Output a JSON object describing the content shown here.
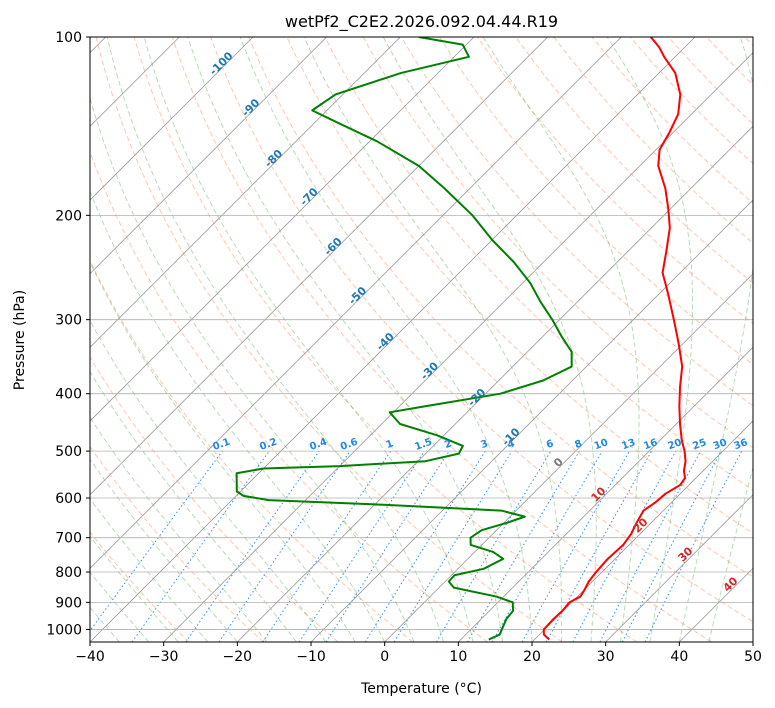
{
  "chart_data": {
    "type": "line",
    "title": "wetPf2_C2E2.2026.092.04.44.R19",
    "xlabel": "Temperature (°C)",
    "ylabel": "Pressure (hPa)",
    "xlim": [
      -40,
      50
    ],
    "ylim": [
      1050,
      100
    ],
    "y_scale": "log",
    "skew": "skew-T log-P diagram",
    "grid": true,
    "x_ticks": [
      -40,
      -30,
      -20,
      -10,
      0,
      10,
      20,
      30,
      40,
      50
    ],
    "y_ticks": [
      100,
      200,
      300,
      400,
      500,
      600,
      700,
      800,
      900,
      1000
    ],
    "isotherm_labels": [
      {
        "value": "-100",
        "p": 112
      },
      {
        "value": "-90",
        "p": 133
      },
      {
        "value": "-80",
        "p": 162
      },
      {
        "value": "-70",
        "p": 188
      },
      {
        "value": "-60",
        "p": 228
      },
      {
        "value": "-50",
        "p": 276
      },
      {
        "value": "-40",
        "p": 330
      },
      {
        "value": "-30",
        "p": 370
      },
      {
        "value": "-20",
        "p": 410
      },
      {
        "value": "-10",
        "p": 478
      }
    ],
    "mixing_ratio_labels": [
      "0.1",
      "0.2",
      "0.4",
      "0.6",
      "1",
      "1.5",
      "2",
      "3",
      "4",
      "6",
      "8",
      "10",
      "13",
      "16",
      "20",
      "25",
      "30",
      "36"
    ],
    "moist_adiabat_labels": [
      "0",
      "10",
      "20",
      "30",
      "40"
    ],
    "series": [
      {
        "role": "temperature",
        "color": "#ff0000",
        "points": [
          {
            "p": 1040,
            "t": 22.0
          },
          {
            "p": 1020,
            "t": 20.6
          },
          {
            "p": 1000,
            "t": 19.9
          },
          {
            "p": 960,
            "t": 19.8
          },
          {
            "p": 930,
            "t": 19.9
          },
          {
            "p": 900,
            "t": 19.7
          },
          {
            "p": 880,
            "t": 20.4
          },
          {
            "p": 860,
            "t": 20.1
          },
          {
            "p": 830,
            "t": 19.5
          },
          {
            "p": 800,
            "t": 19.2
          },
          {
            "p": 760,
            "t": 19.0
          },
          {
            "p": 720,
            "t": 19.2
          },
          {
            "p": 690,
            "t": 18.8
          },
          {
            "p": 660,
            "t": 18.0
          },
          {
            "p": 630,
            "t": 17.3
          },
          {
            "p": 610,
            "t": 17.8
          },
          {
            "p": 590,
            "t": 18.0
          },
          {
            "p": 570,
            "t": 18.8
          },
          {
            "p": 555,
            "t": 18.5
          },
          {
            "p": 540,
            "t": 17.4
          },
          {
            "p": 520,
            "t": 16.3
          },
          {
            "p": 500,
            "t": 14.8
          },
          {
            "p": 480,
            "t": 13.0
          },
          {
            "p": 450,
            "t": 10.5
          },
          {
            "p": 420,
            "t": 8.0
          },
          {
            "p": 390,
            "t": 5.5
          },
          {
            "p": 360,
            "t": 3.0
          },
          {
            "p": 330,
            "t": -0.5
          },
          {
            "p": 300,
            "t": -4.5
          },
          {
            "p": 270,
            "t": -9.0
          },
          {
            "p": 250,
            "t": -12.4
          },
          {
            "p": 230,
            "t": -14.8
          },
          {
            "p": 210,
            "t": -17.5
          },
          {
            "p": 195,
            "t": -20.3
          },
          {
            "p": 180,
            "t": -23.5
          },
          {
            "p": 165,
            "t": -27.5
          },
          {
            "p": 155,
            "t": -29.5
          },
          {
            "p": 145,
            "t": -30.5
          },
          {
            "p": 135,
            "t": -31.8
          },
          {
            "p": 125,
            "t": -34.2
          },
          {
            "p": 115,
            "t": -37.8
          },
          {
            "p": 108,
            "t": -41.5
          },
          {
            "p": 104,
            "t": -43.5
          },
          {
            "p": 100,
            "t": -46.0
          }
        ]
      },
      {
        "role": "dewpoint",
        "color": "#008000",
        "points": [
          {
            "p": 1040,
            "t": 13.8
          },
          {
            "p": 1020,
            "t": 14.6
          },
          {
            "p": 1000,
            "t": 14.2
          },
          {
            "p": 960,
            "t": 13.4
          },
          {
            "p": 930,
            "t": 13.2
          },
          {
            "p": 900,
            "t": 12.0
          },
          {
            "p": 880,
            "t": 9.0
          },
          {
            "p": 850,
            "t": 2.0
          },
          {
            "p": 830,
            "t": 0.5
          },
          {
            "p": 810,
            "t": 0.4
          },
          {
            "p": 790,
            "t": 3.5
          },
          {
            "p": 760,
            "t": 4.8
          },
          {
            "p": 740,
            "t": 2.5
          },
          {
            "p": 720,
            "t": -1.5
          },
          {
            "p": 700,
            "t": -2.5
          },
          {
            "p": 680,
            "t": -2.0
          },
          {
            "p": 660,
            "t": 0.5
          },
          {
            "p": 645,
            "t": 2.0
          },
          {
            "p": 630,
            "t": -2.0
          },
          {
            "p": 615,
            "t": -20.0
          },
          {
            "p": 605,
            "t": -35.0
          },
          {
            "p": 595,
            "t": -39.0
          },
          {
            "p": 585,
            "t": -40.5
          },
          {
            "p": 545,
            "t": -43.0
          },
          {
            "p": 535,
            "t": -40.0
          },
          {
            "p": 530,
            "t": -30.0
          },
          {
            "p": 520,
            "t": -19.0
          },
          {
            "p": 505,
            "t": -15.5
          },
          {
            "p": 490,
            "t": -16.0
          },
          {
            "p": 470,
            "t": -21.0
          },
          {
            "p": 450,
            "t": -27.5
          },
          {
            "p": 430,
            "t": -30.5
          },
          {
            "p": 420,
            "t": -26.5
          },
          {
            "p": 400,
            "t": -18.0
          },
          {
            "p": 380,
            "t": -14.0
          },
          {
            "p": 360,
            "t": -12.0
          },
          {
            "p": 340,
            "t": -14.0
          },
          {
            "p": 320,
            "t": -17.5
          },
          {
            "p": 300,
            "t": -21.0
          },
          {
            "p": 280,
            "t": -25.0
          },
          {
            "p": 260,
            "t": -29.0
          },
          {
            "p": 240,
            "t": -34.0
          },
          {
            "p": 220,
            "t": -40.0
          },
          {
            "p": 200,
            "t": -46.0
          },
          {
            "p": 180,
            "t": -53.5
          },
          {
            "p": 165,
            "t": -60.0
          },
          {
            "p": 150,
            "t": -69.0
          },
          {
            "p": 140,
            "t": -76.5
          },
          {
            "p": 133,
            "t": -82.0
          },
          {
            "p": 125,
            "t": -81.0
          },
          {
            "p": 115,
            "t": -75.0
          },
          {
            "p": 108,
            "t": -68.0
          },
          {
            "p": 103,
            "t": -70.5
          },
          {
            "p": 100,
            "t": -77.5
          }
        ]
      }
    ]
  }
}
